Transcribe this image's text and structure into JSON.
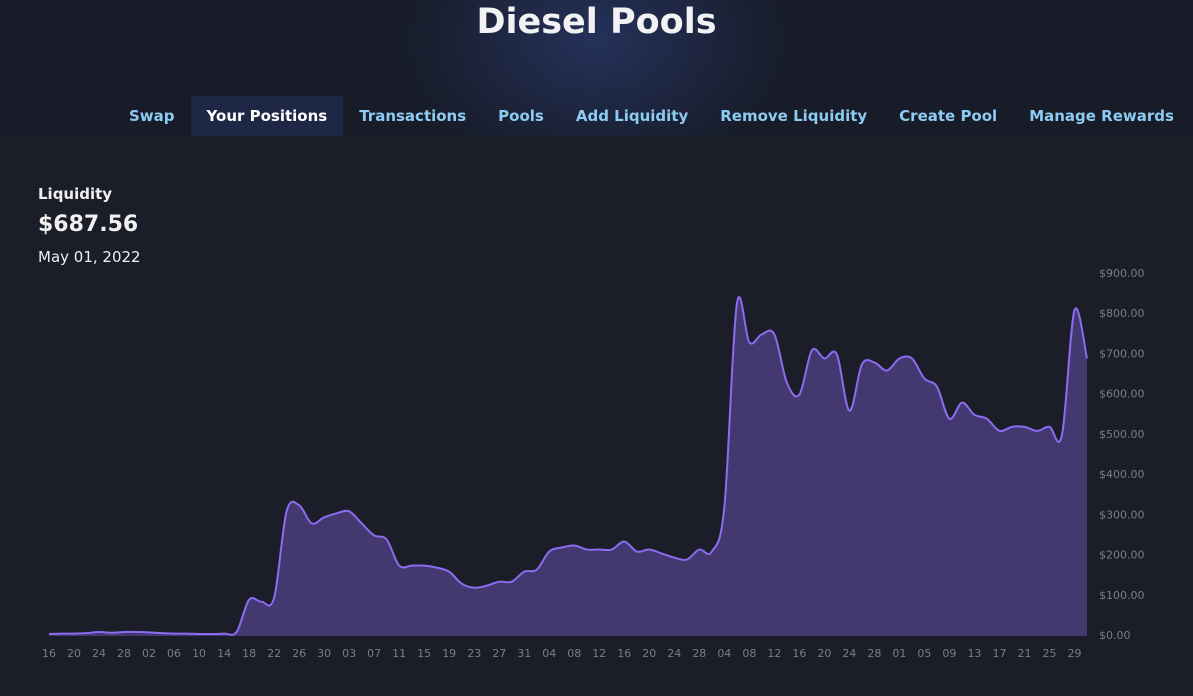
{
  "header": {
    "title": "Diesel Pools"
  },
  "nav": [
    "Swap",
    "Your Positions",
    "Transactions",
    "Pools",
    "Add Liquidity",
    "Remove Liquidity",
    "Create Pool",
    "Manage Rewards"
  ],
  "summary": {
    "label": "Liquidity",
    "value": "$687.56",
    "date": "May 01, 2022"
  },
  "chart_data": {
    "type": "area",
    "color": "#8b6cf0",
    "fill": "#433870",
    "categories": [
      "16",
      null,
      "20",
      null,
      "24",
      null,
      "28",
      null,
      "02",
      null,
      "06",
      null,
      "10",
      null,
      "14",
      null,
      "18",
      null,
      "22",
      null,
      "26",
      null,
      "30",
      null,
      "03",
      null,
      "07",
      null,
      "11",
      null,
      "15",
      null,
      "19",
      null,
      "23",
      null,
      "27",
      null,
      "31",
      null,
      "04",
      null,
      "08",
      null,
      "12",
      null,
      "16",
      null,
      "20",
      null,
      "24",
      null,
      "28",
      null,
      "04",
      null,
      "08",
      null,
      "12",
      null,
      "16",
      null,
      "20",
      null,
      "24",
      null,
      "28",
      null,
      "01",
      null,
      "05",
      null,
      "09",
      null,
      "13",
      null,
      "17",
      null,
      "21",
      null,
      "25",
      null,
      "29",
      null
    ],
    "values": [
      5,
      6,
      6,
      7,
      10,
      8,
      10,
      10,
      9,
      7,
      6,
      6,
      5,
      5,
      6,
      10,
      90,
      85,
      95,
      310,
      325,
      280,
      295,
      305,
      310,
      280,
      250,
      240,
      175,
      175,
      175,
      170,
      160,
      130,
      120,
      125,
      135,
      135,
      160,
      165,
      210,
      220,
      225,
      215,
      215,
      215,
      235,
      210,
      215,
      205,
      195,
      190,
      215,
      210,
      320,
      825,
      730,
      750,
      750,
      630,
      600,
      710,
      690,
      700,
      560,
      675,
      680,
      660,
      690,
      690,
      640,
      620,
      540,
      580,
      550,
      540,
      510,
      520,
      520,
      510,
      520,
      500,
      810,
      690
    ],
    "ylim": [
      0,
      900
    ],
    "yticks": [
      {
        "value": 0,
        "label": "$0.00"
      },
      {
        "value": 100,
        "label": "$100.00"
      },
      {
        "value": 200,
        "label": "$200.00"
      },
      {
        "value": 300,
        "label": "$300.00"
      },
      {
        "value": 400,
        "label": "$400.00"
      },
      {
        "value": 500,
        "label": "$500.00"
      },
      {
        "value": 600,
        "label": "$600.00"
      },
      {
        "value": 700,
        "label": "$700.00"
      },
      {
        "value": 800,
        "label": "$800.00"
      },
      {
        "value": 900,
        "label": "$900.00"
      }
    ]
  }
}
